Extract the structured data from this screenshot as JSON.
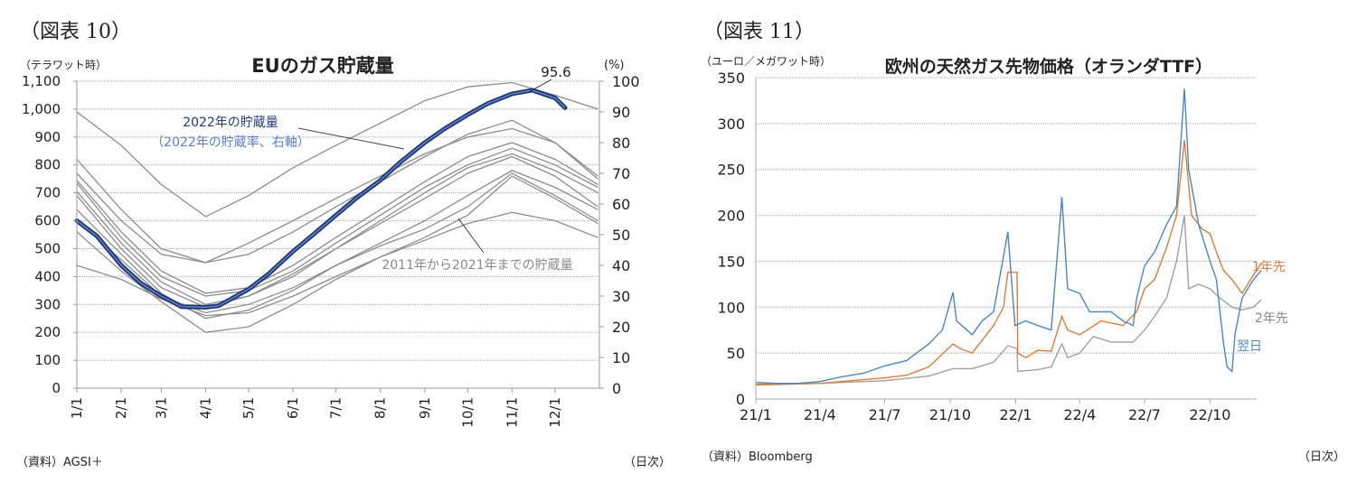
{
  "chart_data": [
    {
      "type": "line",
      "figure_label": "（図表 10）",
      "title": "EUのガス貯蔵量",
      "ylabel": "（テラワット時）",
      "y2label": "(%)",
      "ylim": [
        0,
        1100
      ],
      "y2lim": [
        0,
        100
      ],
      "yticks": [
        "0",
        "100",
        "200",
        "300",
        "400",
        "500",
        "600",
        "700",
        "800",
        "900",
        "1,000",
        "1,100"
      ],
      "y2ticks": [
        "0",
        "10",
        "20",
        "30",
        "40",
        "50",
        "60",
        "70",
        "80",
        "90",
        "100"
      ],
      "xticks": [
        "1/1",
        "2/1",
        "3/1",
        "4/1",
        "5/1",
        "6/1",
        "7/1",
        "8/1",
        "9/1",
        "10/1",
        "11/1",
        "12/1"
      ],
      "grid": true,
      "source": "（資料）AGSI＋",
      "xunit": "（日次）",
      "peak_label": "95.6",
      "annotation_2022": "2022年の貯蔵量",
      "annotation_2022_sub": "（2022年の貯蔵率、右軸）",
      "annotation_hist": "2011年から2021年までの貯蔵量",
      "colors": {
        "current": "#1f3a7a",
        "current_inner": "#6f8fd0",
        "history": "#8c8c8c"
      },
      "history_x": [
        "1/1",
        "2/1",
        "3/1",
        "4/1",
        "5/1",
        "6/1",
        "7/1",
        "8/1",
        "9/1",
        "10/1",
        "11/1",
        "12/1",
        "12/31"
      ],
      "history": [
        [
          990,
          870,
          730,
          615,
          690,
          790,
          870,
          950,
          1030,
          1080,
          1095,
          1050,
          1000
        ],
        [
          820,
          640,
          500,
          450,
          520,
          600,
          680,
          760,
          840,
          900,
          930,
          880,
          750
        ],
        [
          770,
          600,
          480,
          450,
          480,
          560,
          650,
          740,
          830,
          910,
          960,
          880,
          760
        ],
        [
          745,
          560,
          420,
          340,
          360,
          440,
          540,
          640,
          740,
          830,
          880,
          820,
          730
        ],
        [
          735,
          540,
          400,
          330,
          350,
          420,
          520,
          620,
          720,
          800,
          860,
          800,
          720
        ],
        [
          705,
          520,
          380,
          300,
          330,
          400,
          500,
          600,
          700,
          790,
          840,
          780,
          700
        ],
        [
          690,
          500,
          360,
          290,
          330,
          410,
          500,
          590,
          680,
          770,
          830,
          760,
          650
        ],
        [
          640,
          480,
          340,
          250,
          280,
          350,
          440,
          520,
          600,
          690,
          780,
          720,
          640
        ],
        [
          600,
          460,
          330,
          270,
          300,
          360,
          440,
          510,
          570,
          650,
          770,
          690,
          600
        ],
        [
          560,
          420,
          310,
          200,
          220,
          300,
          390,
          470,
          540,
          620,
          760,
          680,
          590
        ],
        [
          440,
          390,
          320,
          260,
          270,
          330,
          400,
          470,
          530,
          590,
          630,
          600,
          540
        ]
      ],
      "current_x": [
        "1/1",
        "1/15",
        "2/1",
        "2/15",
        "3/1",
        "3/15",
        "4/1",
        "4/10",
        "5/1",
        "5/15",
        "6/1",
        "6/15",
        "7/1",
        "7/15",
        "8/1",
        "8/15",
        "9/1",
        "9/15",
        "10/1",
        "10/15",
        "11/1",
        "11/15",
        "12/1",
        "12/8"
      ],
      "current_values": [
        600,
        545,
        440,
        375,
        330,
        292,
        290,
        295,
        355,
        410,
        490,
        550,
        620,
        680,
        745,
        810,
        880,
        930,
        980,
        1020,
        1055,
        1068,
        1040,
        1005
      ]
    },
    {
      "type": "line",
      "figure_label": "（図表 11）",
      "title": "欧州の天然ガス先物価格（オランダTTF）",
      "ylabel": "（ユーロ／メガワット時）",
      "ylim": [
        0,
        350
      ],
      "yticks": [
        "0",
        "50",
        "100",
        "150",
        "200",
        "250",
        "300",
        "350"
      ],
      "xticks": [
        "21/1",
        "21/4",
        "21/7",
        "21/10",
        "22/1",
        "22/4",
        "22/7",
        "22/10"
      ],
      "grid": true,
      "source": "（資料）Bloomberg",
      "xunit": "（日次）",
      "series": [
        {
          "name": "翌日",
          "color": "#4a86c5",
          "x": [
            "2021-01-01",
            "2021-02-01",
            "2021-03-01",
            "2021-04-01",
            "2021-05-01",
            "2021-06-01",
            "2021-07-01",
            "2021-08-01",
            "2021-09-01",
            "2021-09-20",
            "2021-10-05",
            "2021-10-10",
            "2021-11-01",
            "2021-11-15",
            "2021-12-01",
            "2021-12-21",
            "2021-12-31",
            "2022-01-15",
            "2022-02-01",
            "2022-02-20",
            "2022-03-07",
            "2022-03-15",
            "2022-04-01",
            "2022-04-15",
            "2022-05-01",
            "2022-05-15",
            "2022-06-01",
            "2022-06-15",
            "2022-06-20",
            "2022-07-01",
            "2022-07-15",
            "2022-08-01",
            "2022-08-15",
            "2022-08-26",
            "2022-09-01",
            "2022-09-15",
            "2022-10-01",
            "2022-10-10",
            "2022-10-20",
            "2022-10-25",
            "2022-11-01",
            "2022-11-05",
            "2022-11-15",
            "2022-12-01",
            "2022-12-12"
          ],
          "values": [
            18,
            17,
            17,
            19,
            24,
            28,
            36,
            42,
            60,
            75,
            116,
            85,
            70,
            85,
            95,
            182,
            80,
            85,
            80,
            75,
            220,
            120,
            115,
            95,
            95,
            95,
            85,
            80,
            110,
            145,
            160,
            190,
            210,
            338,
            250,
            190,
            150,
            130,
            60,
            35,
            30,
            70,
            110,
            130,
            140
          ]
        },
        {
          "name": "1年先",
          "color": "#e07b39",
          "x": [
            "2021-01-01",
            "2021-04-01",
            "2021-07-01",
            "2021-08-01",
            "2021-09-01",
            "2021-10-05",
            "2021-10-15",
            "2021-11-01",
            "2021-12-01",
            "2021-12-15",
            "2021-12-21",
            "2022-01-03",
            "2022-01-04",
            "2022-01-15",
            "2022-02-01",
            "2022-02-20",
            "2022-03-07",
            "2022-03-15",
            "2022-04-01",
            "2022-05-01",
            "2022-06-01",
            "2022-06-20",
            "2022-07-01",
            "2022-07-15",
            "2022-08-01",
            "2022-08-15",
            "2022-08-26",
            "2022-09-05",
            "2022-09-20",
            "2022-10-01",
            "2022-10-10",
            "2022-10-20",
            "2022-11-01",
            "2022-11-15",
            "2022-12-01",
            "2022-12-12"
          ],
          "values": [
            16,
            17,
            23,
            26,
            35,
            60,
            55,
            50,
            80,
            100,
            138,
            138,
            50,
            45,
            53,
            52,
            90,
            75,
            70,
            85,
            80,
            95,
            120,
            130,
            165,
            200,
            282,
            200,
            185,
            180,
            160,
            140,
            130,
            115,
            135,
            148
          ]
        },
        {
          "name": "2年先",
          "color": "#a0a0a0",
          "x": [
            "2021-01-01",
            "2021-04-01",
            "2021-07-01",
            "2021-09-01",
            "2021-10-05",
            "2021-11-01",
            "2021-12-01",
            "2021-12-21",
            "2022-01-03",
            "2022-01-04",
            "2022-02-01",
            "2022-02-20",
            "2022-03-07",
            "2022-03-15",
            "2022-04-01",
            "2022-04-20",
            "2022-05-15",
            "2022-06-15",
            "2022-07-01",
            "2022-07-15",
            "2022-08-01",
            "2022-08-15",
            "2022-08-26",
            "2022-09-01",
            "2022-09-15",
            "2022-10-01",
            "2022-10-15",
            "2022-11-01",
            "2022-11-15",
            "2022-12-01",
            "2022-12-12"
          ],
          "values": [
            15,
            17,
            20,
            25,
            33,
            33,
            40,
            58,
            55,
            30,
            32,
            35,
            60,
            45,
            50,
            68,
            62,
            62,
            75,
            90,
            110,
            150,
            200,
            120,
            125,
            120,
            110,
            100,
            97,
            100,
            108
          ]
        }
      ]
    }
  ]
}
